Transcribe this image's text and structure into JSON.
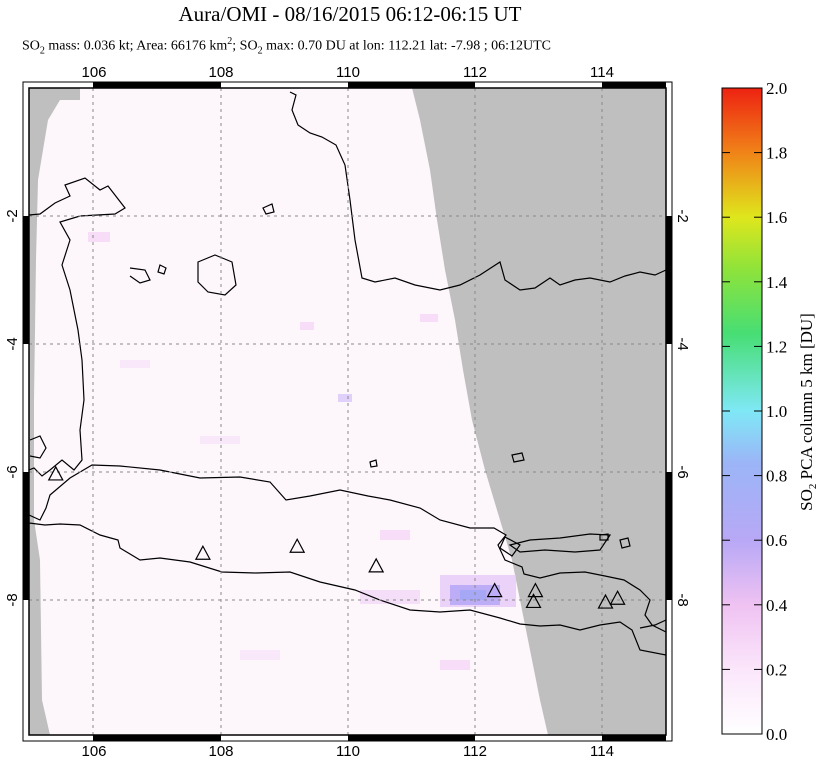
{
  "header": {
    "title": "Aura/OMI - 08/16/2015 06:12-06:15 UT",
    "subtitle": "SO2 mass: 0.036 kt; Area: 66176 km2; SO2 max: 0.70 DU at lon: 112.21 lat: -7.98 ; 06:12UTC",
    "subtitle_parts": {
      "p1": "SO",
      "p1_sub": "2",
      "p2": " mass: 0.036 kt; Area: 66176 km",
      "p2_sup": "2",
      "p3": "; SO",
      "p3_sub": "2",
      "p4": " max: 0.70 DU at lon: 112.21 lat: -7.98 ; 06:12UTC"
    }
  },
  "map": {
    "lon_range": [
      105,
      115
    ],
    "lat_range": [
      -10.2,
      0.0
    ],
    "lon_ticks": [
      "106",
      "108",
      "110",
      "112",
      "114"
    ],
    "lat_ticks": [
      "-2",
      "-4",
      "-6",
      "-8"
    ],
    "no_data_color": "#bfbfbf",
    "volcano_marker": "triangle-icon",
    "volcanoes": [
      {
        "lon": 105.42,
        "lat": -6.1
      },
      {
        "lon": 107.73,
        "lat": -7.35
      },
      {
        "lon": 109.21,
        "lat": -7.24
      },
      {
        "lon": 110.45,
        "lat": -7.55
      },
      {
        "lon": 112.31,
        "lat": -7.94
      },
      {
        "lon": 112.95,
        "lat": -7.94
      },
      {
        "lon": 112.92,
        "lat": -8.11
      },
      {
        "lon": 114.05,
        "lat": -8.12
      },
      {
        "lon": 114.24,
        "lat": -8.06
      }
    ],
    "so2_max": {
      "value_du": 0.7,
      "lon": 112.21,
      "lat": -7.98
    }
  },
  "colorbar": {
    "label": "SO2 PCA column 5 km [DU]",
    "label_main": "SO",
    "label_sub": "2",
    "label_rest": " PCA column 5 km [DU]",
    "ticks": [
      "0.0",
      "0.2",
      "0.4",
      "0.6",
      "0.8",
      "1.0",
      "1.2",
      "1.4",
      "1.6",
      "1.8",
      "2.0"
    ],
    "range": [
      0.0,
      2.0
    ],
    "colors": [
      "#ffffff",
      "#f3c8f3",
      "#b4a6f7",
      "#7be6f5",
      "#3fdc5a",
      "#d7e61d",
      "#f07a16",
      "#ef2a14"
    ]
  }
}
